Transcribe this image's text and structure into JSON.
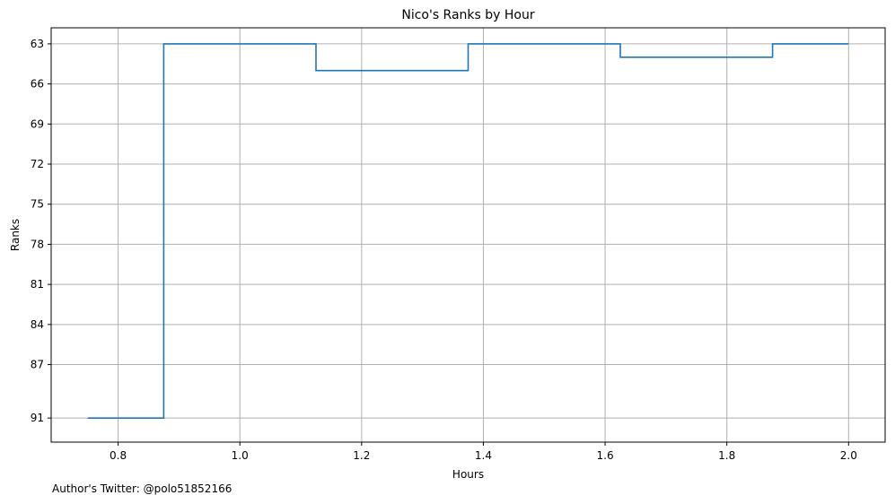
{
  "chart_data": {
    "type": "line",
    "title": "Nico's Ranks by Hour",
    "xlabel": "Hours",
    "ylabel": "Ranks",
    "xlim": [
      0.69,
      2.06
    ],
    "ylim": [
      92.8,
      61.8
    ],
    "y_inverted": true,
    "grid": true,
    "drawstyle": "steps-mid",
    "x_ticks": [
      0.8,
      1.0,
      1.2,
      1.4,
      1.6,
      1.8,
      2.0
    ],
    "x_tick_labels": [
      "0.8",
      "1.0",
      "1.2",
      "1.4",
      "1.6",
      "1.8",
      "2.0"
    ],
    "y_ticks": [
      63,
      66,
      69,
      72,
      75,
      78,
      81,
      84,
      87,
      91
    ],
    "y_tick_labels": [
      "63",
      "66",
      "69",
      "72",
      "75",
      "78",
      "81",
      "84",
      "87",
      "91"
    ],
    "series": [
      {
        "color": "#1f77b4",
        "x": [
          0.75,
          1.0,
          1.25,
          1.5,
          1.75,
          2.0
        ],
        "y": [
          91,
          63,
          65,
          63,
          64,
          63
        ]
      }
    ]
  },
  "footer": {
    "text": "Author's Twitter: @polo51852166"
  }
}
